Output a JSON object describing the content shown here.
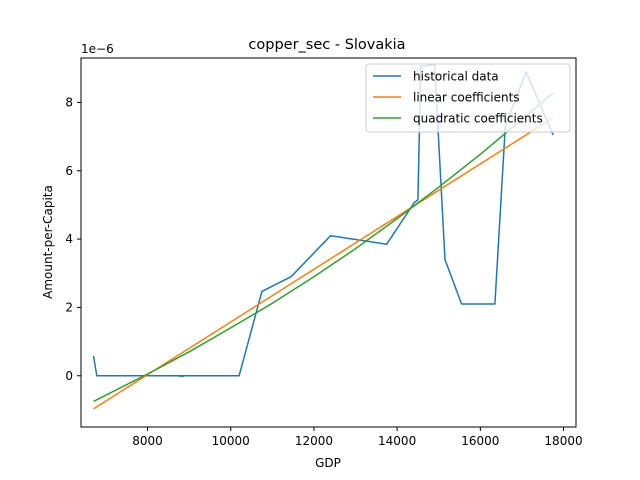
{
  "chart_data": {
    "type": "line",
    "title": "copper_sec - Slovakia",
    "xlabel": "GDP",
    "ylabel": "Amount-per-Capita",
    "y_offset_label": "1e−6",
    "xlim": [
      6400,
      18300
    ],
    "ylim": [
      -1.5,
      9.3
    ],
    "x_ticks": [
      8000,
      10000,
      12000,
      14000,
      16000,
      18000
    ],
    "y_ticks": [
      0,
      2,
      4,
      6,
      8
    ],
    "legend_position": "upper right",
    "grid": false,
    "series": [
      {
        "name": "historical data",
        "color": "#1f77b4",
        "points": [
          [
            6700,
            0.58
          ],
          [
            6780,
            0.0
          ],
          [
            7500,
            0.0
          ],
          [
            8700,
            0.0
          ],
          [
            8850,
            -0.02
          ],
          [
            8700,
            0.0
          ],
          [
            10200,
            0.0
          ],
          [
            10750,
            2.47
          ],
          [
            11450,
            2.9
          ],
          [
            12400,
            4.1
          ],
          [
            13750,
            3.85
          ],
          [
            14400,
            5.05
          ],
          [
            14500,
            5.15
          ],
          [
            14570,
            9.05
          ],
          [
            14900,
            9.1
          ],
          [
            15150,
            3.4
          ],
          [
            15550,
            2.1
          ],
          [
            16350,
            2.1
          ],
          [
            16600,
            7.3
          ],
          [
            17100,
            8.9
          ],
          [
            17750,
            7.05
          ]
        ]
      },
      {
        "name": "linear coefficients",
        "color": "#ff7f0e",
        "points": [
          [
            6700,
            -0.97
          ],
          [
            17750,
            7.55
          ]
        ]
      },
      {
        "name": "quadratic coefficients",
        "color": "#2ca02c",
        "points": [
          [
            6700,
            -0.75
          ],
          [
            8000,
            0.05
          ],
          [
            9000,
            0.7
          ],
          [
            10000,
            1.4
          ],
          [
            11000,
            2.12
          ],
          [
            12000,
            2.9
          ],
          [
            13000,
            3.72
          ],
          [
            14000,
            4.6
          ],
          [
            15000,
            5.52
          ],
          [
            16000,
            6.48
          ],
          [
            17000,
            7.5
          ],
          [
            17750,
            8.28
          ]
        ]
      }
    ]
  }
}
